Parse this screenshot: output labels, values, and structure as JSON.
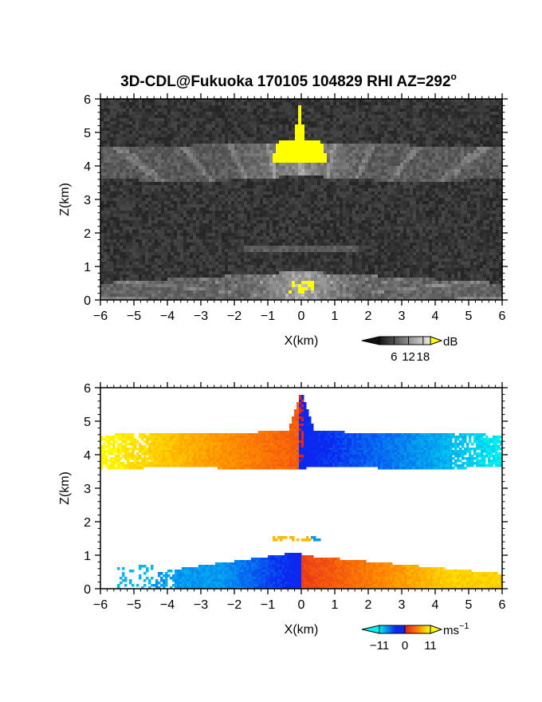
{
  "chart_data": [
    {
      "type": "heatmap",
      "title": "3D-CDL@Fukuoka 170105 104829 RHI AZ=292°",
      "title_text": "3D-CDL@Fukuoka 170105 104829 RHI AZ=292",
      "title_superscript": "o",
      "xlabel": "X(km)",
      "ylabel": "Z(km)",
      "xlim": [
        -6,
        6
      ],
      "ylim": [
        0,
        6
      ],
      "xticks": [
        "−6",
        "−5",
        "−4",
        "−3",
        "−2",
        "−1",
        "0",
        "1",
        "2",
        "3",
        "4",
        "5",
        "6"
      ],
      "yticks": [
        "0",
        "1",
        "2",
        "3",
        "4",
        "5",
        "6"
      ],
      "colorbar": {
        "unit": "dB",
        "ticks": [
          "6",
          "12",
          "18"
        ],
        "range": [
          0,
          21
        ],
        "colormap": "grayscale, yellow above max"
      },
      "features": [
        {
          "name": "upper layer",
          "z_range": [
            3.6,
            4.7
          ],
          "x_range": [
            -6,
            6
          ],
          "level_db": 10
        },
        {
          "name": "saturated core",
          "z_range": [
            4.0,
            5.8
          ],
          "x_range": [
            -0.9,
            0.8
          ],
          "level_db": 21
        },
        {
          "name": "thin layer",
          "z_range": [
            1.4,
            1.6
          ],
          "x_range": [
            -1.7,
            1.7
          ],
          "level_db": 7
        },
        {
          "name": "boundary layer",
          "z_range": [
            0,
            0.85
          ],
          "x_range": [
            -6,
            6
          ],
          "level_db": 11
        }
      ],
      "background_db": 3
    },
    {
      "type": "heatmap",
      "xlabel": "X(km)",
      "ylabel": "Z(km)",
      "xlim": [
        -6,
        6
      ],
      "ylim": [
        0,
        6
      ],
      "xticks": [
        "−6",
        "−5",
        "−4",
        "−3",
        "−2",
        "−1",
        "0",
        "1",
        "2",
        "3",
        "4",
        "5",
        "6"
      ],
      "yticks": [
        "0",
        "1",
        "2",
        "3",
        "4",
        "5",
        "6"
      ],
      "colorbar": {
        "unit": "ms",
        "unit_superscript": "−1",
        "ticks": [
          "−11",
          "0",
          "11"
        ],
        "range": [
          -11,
          11
        ],
        "colormap": "cyan-blue-red-yellow"
      },
      "features": [
        {
          "name": "upper layer",
          "z_range": [
            3.6,
            4.7
          ],
          "x_range": [
            -6,
            6
          ],
          "velocity_left": 11,
          "velocity_right": -11
        },
        {
          "name": "thin layer",
          "z_range": [
            1.45,
            1.6
          ],
          "x_range": [
            -0.9,
            0.6
          ],
          "velocity": 8
        },
        {
          "name": "boundary layer",
          "z_range": [
            0,
            1.1
          ],
          "x_range": [
            -5.3,
            6
          ],
          "velocity_left": -8,
          "velocity_right": 9
        }
      ]
    }
  ],
  "colors": {
    "cyan": "#00f0f0",
    "blue": "#0a28f0",
    "red": "#e61e1e",
    "orange": "#ff8c00",
    "yellow": "#ffff00"
  }
}
